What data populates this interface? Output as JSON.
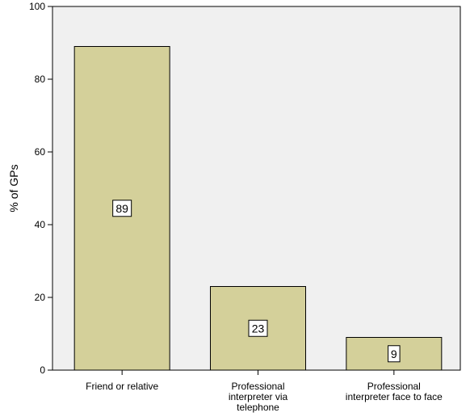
{
  "chart_data": {
    "type": "bar",
    "categories": [
      [
        "Friend or relative"
      ],
      [
        "Professional",
        "interpreter via",
        "telephone"
      ],
      [
        "Professional",
        "interpreter face to face"
      ]
    ],
    "values": [
      89,
      23,
      9
    ],
    "data_labels": [
      "89",
      "23",
      "9"
    ],
    "ylabel": "% of GPs",
    "xlabel": "",
    "title": "",
    "ylim": [
      0,
      100
    ],
    "yticks": [
      0,
      20,
      40,
      60,
      80,
      100
    ],
    "grid": false,
    "colors": {
      "bar": "#d4d09a",
      "plot_bg": "#f0f0f0",
      "axis": "#000000"
    }
  }
}
